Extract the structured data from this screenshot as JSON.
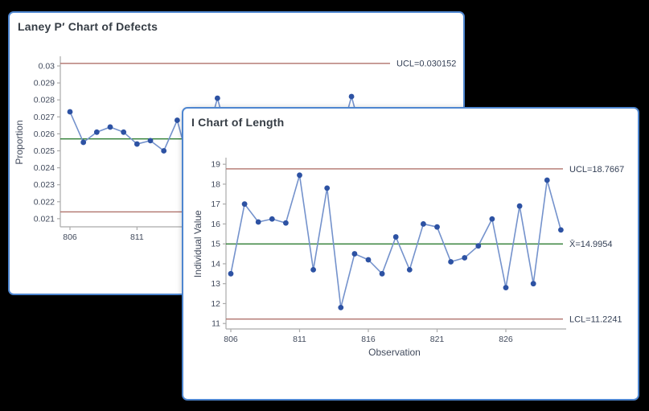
{
  "colors": {
    "background": "#000000",
    "window_bg": "#ffffff",
    "window_border": "#4e86d0",
    "marker": "#2d52a3",
    "series_line": "#7492cc",
    "limit_line": "#b0736c",
    "center_line": "#2e7d32",
    "axis_line": "#ababab",
    "tick_text": "#414a5c",
    "control_label_text": "#333f55",
    "title_text": "#363d45"
  },
  "chart_data": [
    {
      "type": "line",
      "chart_kind": "control-chart",
      "title": "Laney P′ Chart of Defects",
      "xlabel": "",
      "ylabel": "Proportion",
      "x": [
        806,
        807,
        808,
        809,
        810,
        811,
        812,
        813,
        814,
        815,
        816,
        817,
        818,
        819,
        820,
        821,
        822,
        823,
        824,
        825,
        826,
        827,
        828,
        829,
        830
      ],
      "values": [
        0.0273,
        0.0255,
        0.0261,
        0.0264,
        0.0261,
        0.0254,
        0.0256,
        0.025,
        0.0268,
        null,
        null,
        0.0281,
        null,
        null,
        null,
        null,
        null,
        null,
        null,
        null,
        null,
        0.0282,
        null,
        null,
        null
      ],
      "x_ticks": [
        806,
        811
      ],
      "y_ticks": [
        0.021,
        0.022,
        0.023,
        0.024,
        0.025,
        0.026,
        0.027,
        0.028,
        0.029,
        0.03
      ],
      "ylim": [
        0.0205,
        0.0305
      ],
      "legend": "none",
      "grid": false,
      "ucl": {
        "value": 0.030152,
        "label": "UCL=0.030152"
      },
      "center": {
        "value": 0.0257,
        "label": ""
      },
      "lcl": {
        "value": 0.0214,
        "label": ""
      }
    },
    {
      "type": "line",
      "chart_kind": "control-chart",
      "title": "I Chart of Length",
      "xlabel": "Observation",
      "ylabel": "Individual Value",
      "x": [
        806,
        807,
        808,
        809,
        810,
        811,
        812,
        813,
        814,
        815,
        816,
        817,
        818,
        819,
        820,
        821,
        822,
        823,
        824,
        825,
        826,
        827,
        828,
        829,
        830
      ],
      "values": [
        13.5,
        17.0,
        16.1,
        16.25,
        16.05,
        18.45,
        13.7,
        17.8,
        11.8,
        14.5,
        14.2,
        13.5,
        15.35,
        13.7,
        16.0,
        15.85,
        14.1,
        14.3,
        14.9,
        16.25,
        12.8,
        16.9,
        13.0,
        18.2,
        15.7
      ],
      "x_ticks": [
        806,
        811,
        816,
        821,
        826
      ],
      "y_ticks": [
        11,
        12,
        13,
        14,
        15,
        16,
        17,
        18,
        19
      ],
      "ylim": [
        10.6,
        19.3
      ],
      "legend": "none",
      "grid": false,
      "ucl": {
        "value": 18.7667,
        "label": "UCL=18.7667"
      },
      "center": {
        "value": 14.9954,
        "label": "X̄=14.9954"
      },
      "lcl": {
        "value": 11.2241,
        "label": "LCL=11.2241"
      }
    }
  ]
}
